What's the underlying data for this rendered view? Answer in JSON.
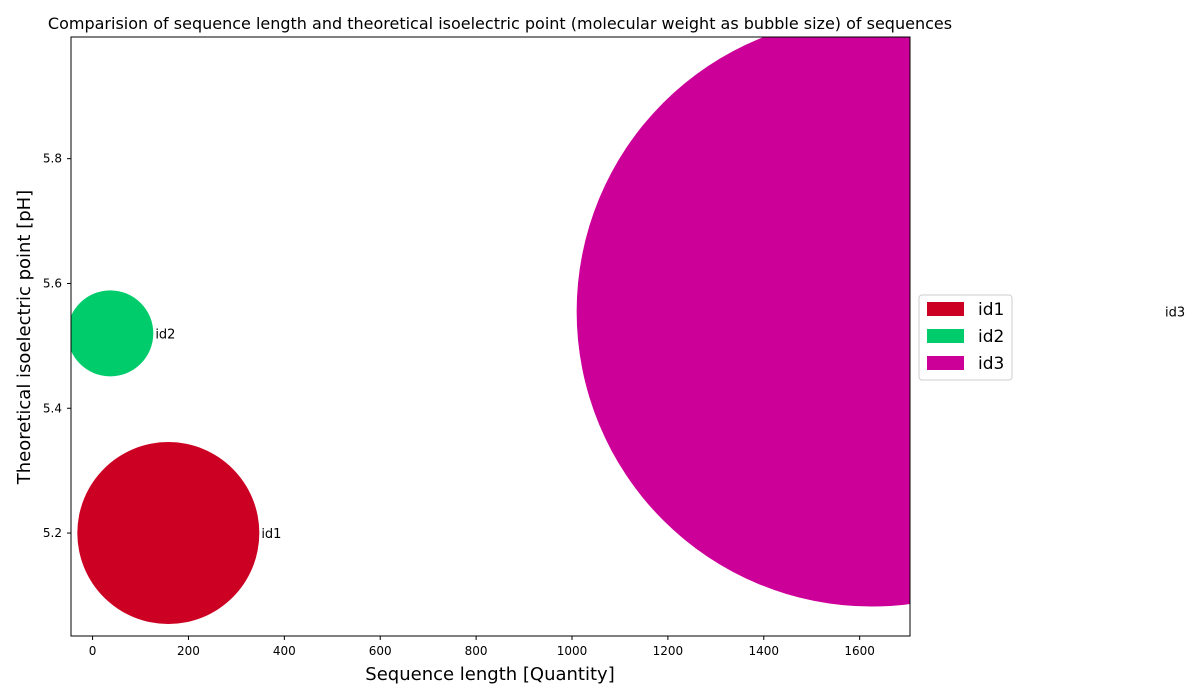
{
  "chart_data": {
    "type": "scatter",
    "title": "Comparision of sequence length and theoretical isoelectric point (molecular weight as bubble size) of sequences",
    "xlabel": "Sequence length [Quantity]",
    "ylabel": "Theoretical isoelectric point [pH]",
    "xlim": [
      -45,
      1705
    ],
    "ylim": [
      5.035,
      5.995
    ],
    "xticks": [
      0,
      200,
      400,
      600,
      800,
      1000,
      1200,
      1400,
      1600
    ],
    "yticks": [
      5.2,
      5.4,
      5.6,
      5.8
    ],
    "grid": false,
    "legend_position": "right",
    "series": [
      {
        "name": "id1",
        "x": 158,
        "y": 5.2,
        "size_radius": 91,
        "color": "#cc0022"
      },
      {
        "name": "id2",
        "x": 37,
        "y": 5.52,
        "size_radius": 43,
        "color": "#00cc6c"
      },
      {
        "name": "id3",
        "x": 1625,
        "y": 5.555,
        "size_radius": 295,
        "color": "#cc0099"
      }
    ]
  }
}
